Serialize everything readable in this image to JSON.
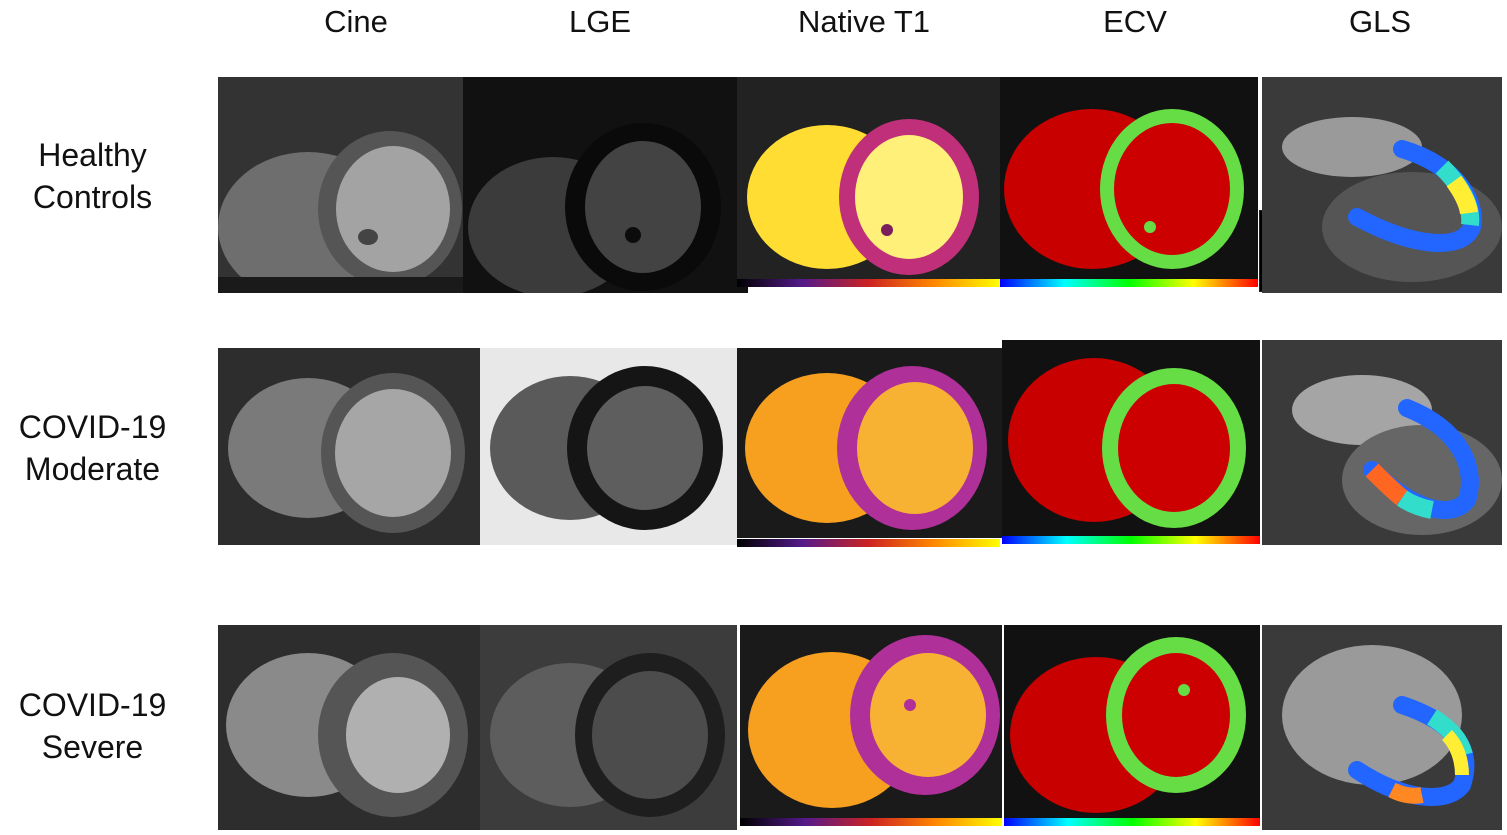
{
  "columns": [
    "Cine",
    "LGE",
    "Native T1",
    "ECV",
    "GLS"
  ],
  "rows": [
    {
      "label_line1": "Healthy",
      "label_line2": "Controls"
    },
    {
      "label_line1": "COVID-19",
      "label_line2": "Moderate"
    },
    {
      "label_line1": "COVID-19",
      "label_line2": "Severe"
    }
  ]
}
